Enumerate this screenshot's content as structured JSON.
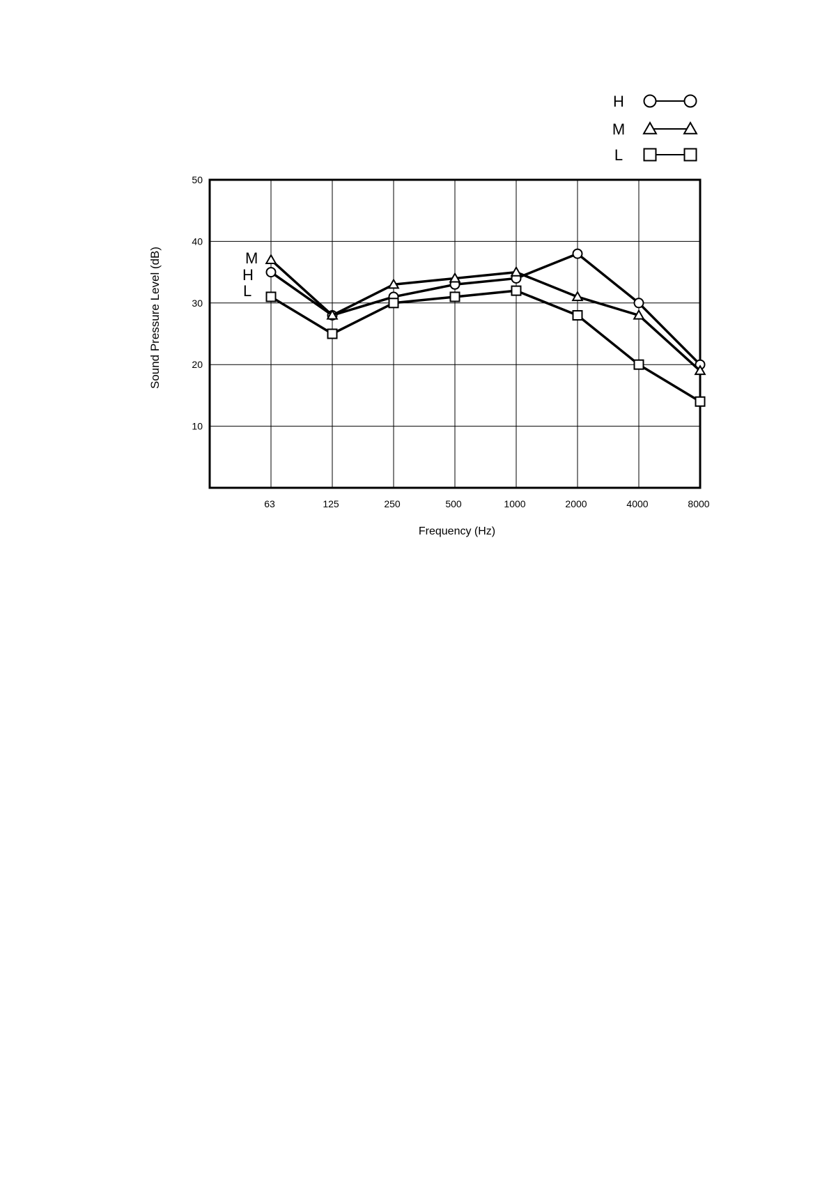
{
  "chart_data": {
    "type": "line",
    "title": "",
    "xlabel": "Frequency (Hz)",
    "ylabel": "Sound Pressure Level (dB)",
    "x_scale": "log",
    "categories": [
      "63",
      "125",
      "250",
      "500",
      "1000",
      "2000",
      "4000",
      "8000"
    ],
    "yticks": [
      "10",
      "20",
      "30",
      "40",
      "50"
    ],
    "ylim": [
      0,
      50
    ],
    "grid": true,
    "legend_placement": "top-right",
    "series": [
      {
        "name": "H",
        "marker": "circle",
        "values": [
          35,
          28,
          31,
          33,
          34,
          38,
          30,
          20
        ]
      },
      {
        "name": "M",
        "marker": "triangle",
        "values": [
          37,
          28,
          33,
          34,
          35,
          31,
          28,
          19
        ]
      },
      {
        "name": "L",
        "marker": "square",
        "values": [
          31,
          25,
          30,
          31,
          32,
          28,
          20,
          14
        ]
      }
    ],
    "inline_labels": [
      "M",
      "H",
      "L"
    ],
    "line_color": "#000000",
    "marker_fill": "#ffffff"
  }
}
